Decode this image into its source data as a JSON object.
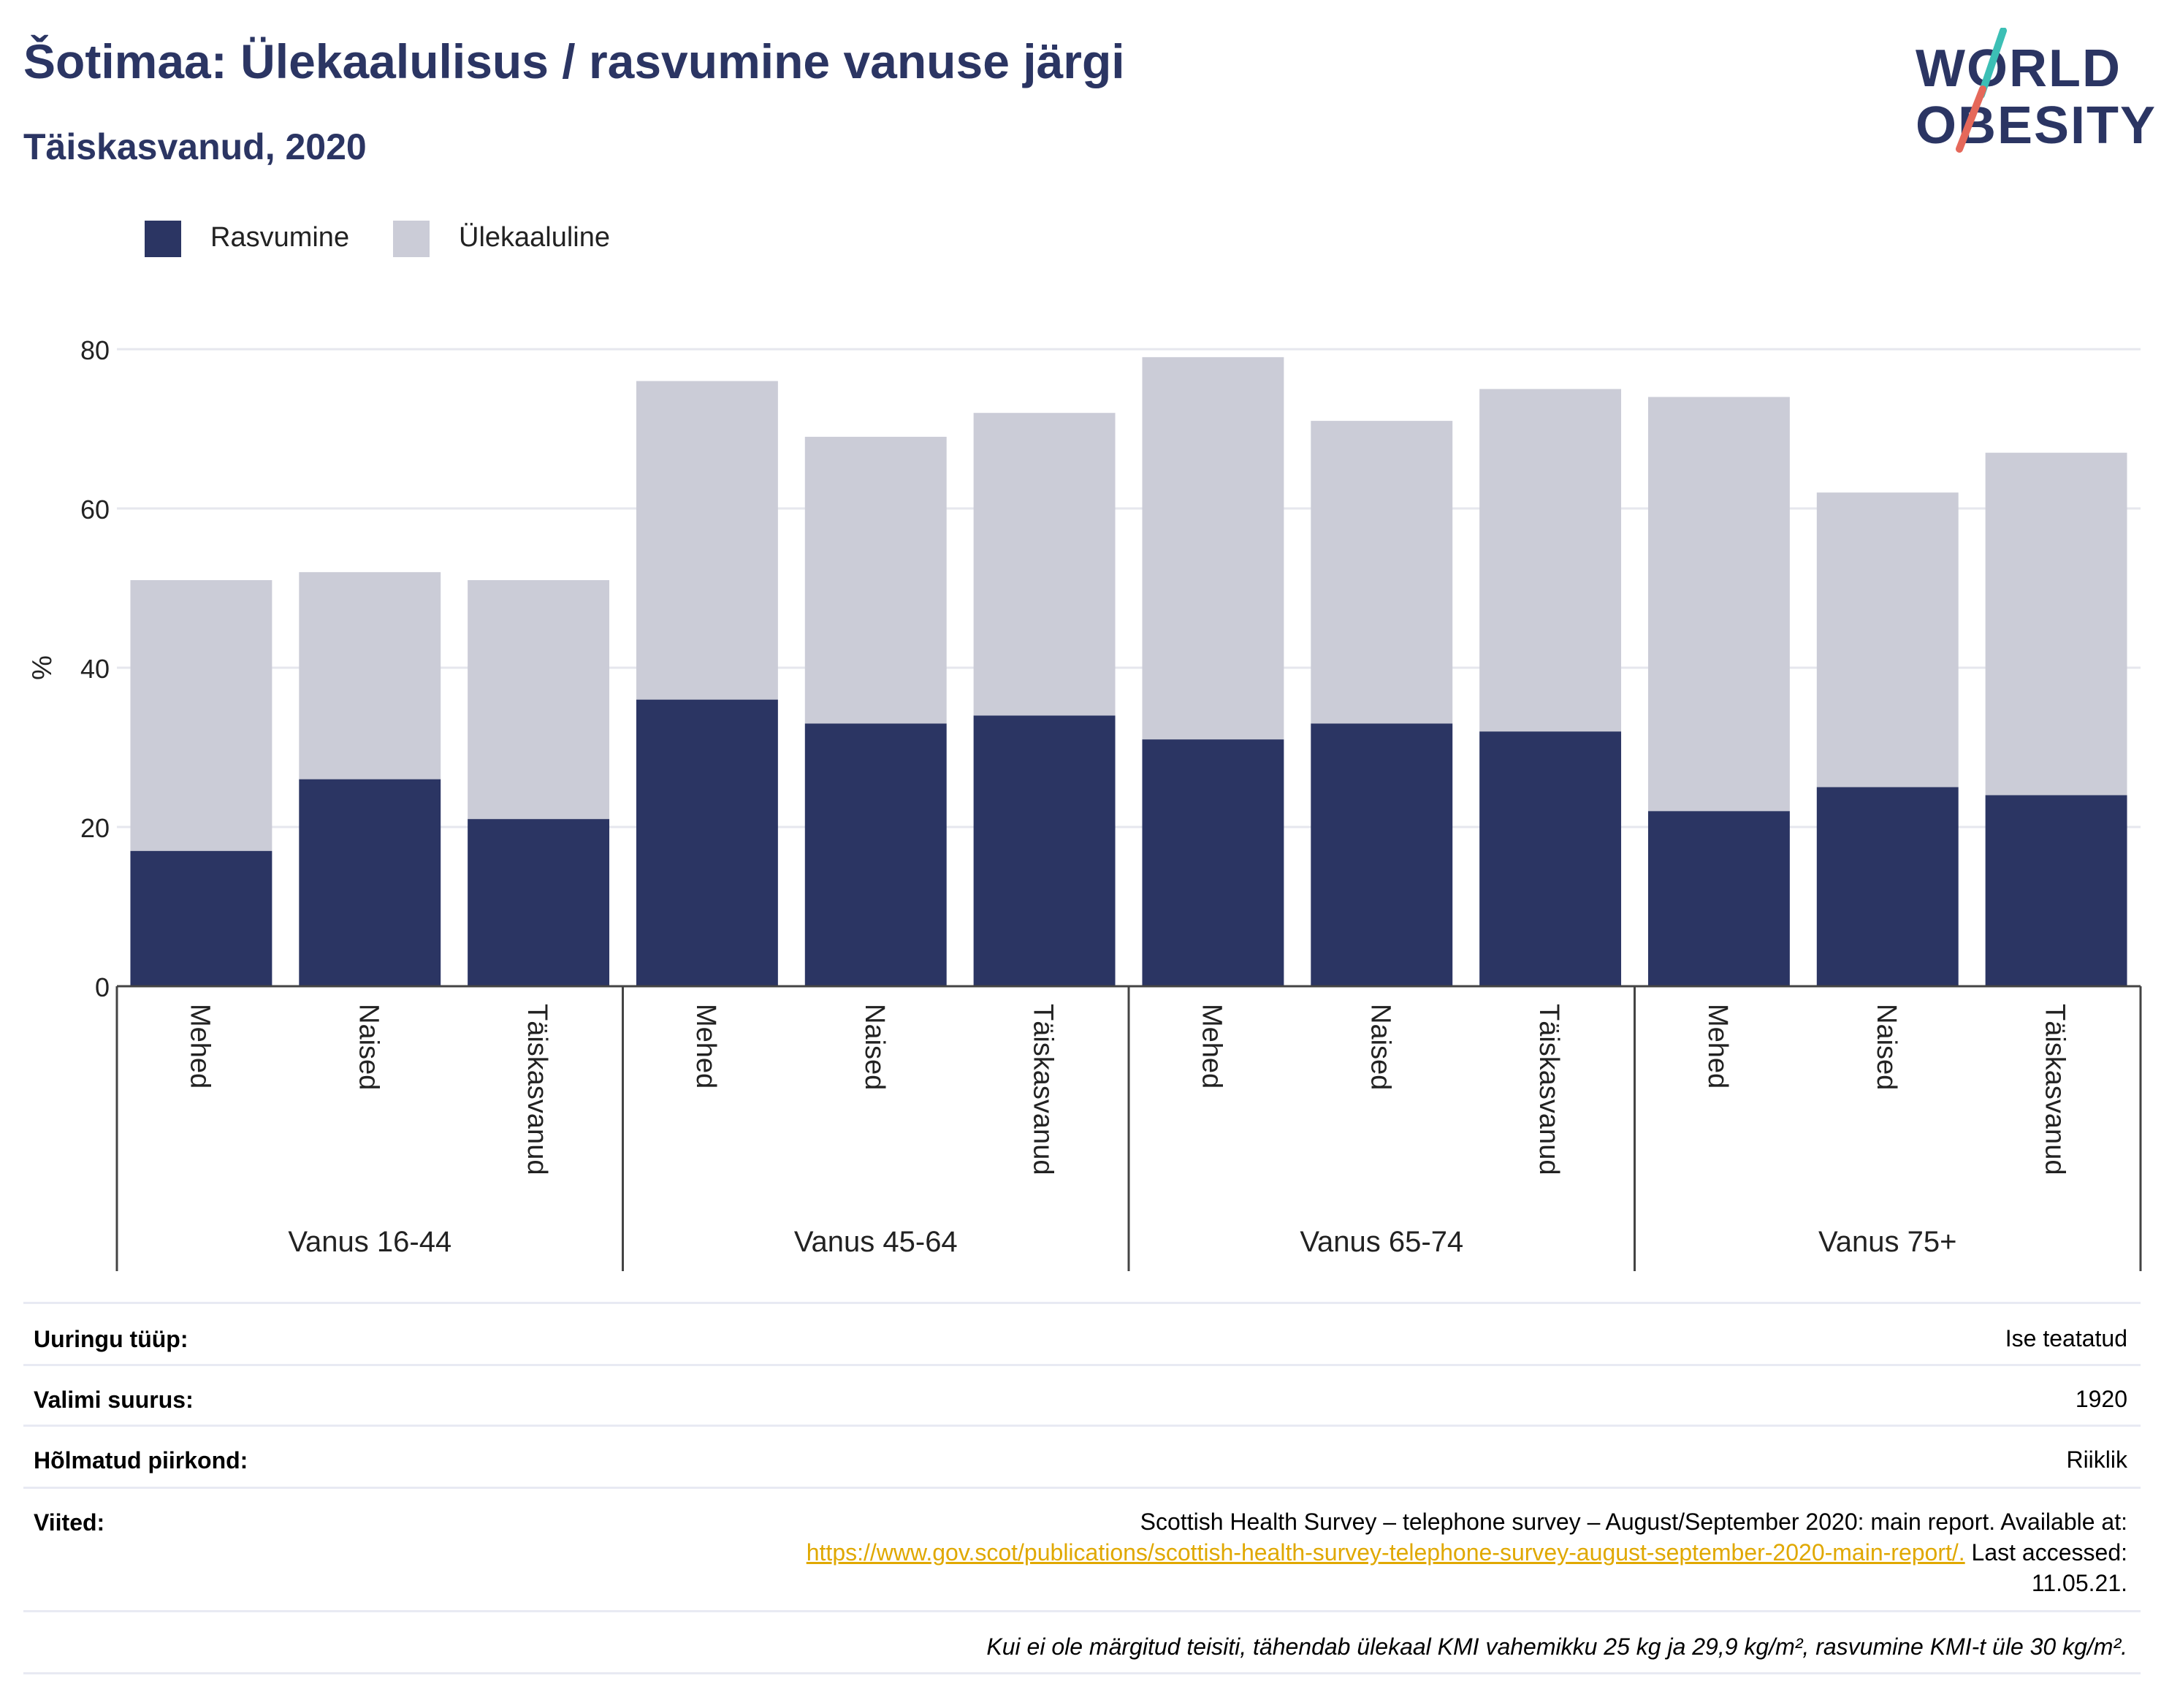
{
  "header": {
    "title": "Šotimaa: Ülekaalulisus / rasvumine vanuse järgi",
    "subtitle": "Täiskasvanud, 2020"
  },
  "logo": {
    "line1": "WORLD",
    "line2": "OBESITY",
    "colors": {
      "text": "#2b3563",
      "slash_top": "#3cbfb5",
      "slash_bottom": "#e5685a"
    }
  },
  "legend": [
    {
      "label": "Rasvumine",
      "color": "#2b3563"
    },
    {
      "label": "Ülekaaluline",
      "color": "#cbccd7"
    }
  ],
  "chart_data": {
    "type": "bar",
    "stacked": true,
    "ylabel": "%",
    "ylim": [
      0,
      88
    ],
    "yticks": [
      0,
      20,
      40,
      60,
      80
    ],
    "grid": true,
    "legend_position": "top-left",
    "groups": [
      {
        "label": "Vanus 16-44",
        "categories": [
          "Mehed",
          "Naised",
          "Täiskasvanud"
        ]
      },
      {
        "label": "Vanus 45-64",
        "categories": [
          "Mehed",
          "Naised",
          "Täiskasvanud"
        ]
      },
      {
        "label": "Vanus 65-74",
        "categories": [
          "Mehed",
          "Naised",
          "Täiskasvanud"
        ]
      },
      {
        "label": "Vanus 75+",
        "categories": [
          "Mehed",
          "Naised",
          "Täiskasvanud"
        ]
      }
    ],
    "series": [
      {
        "name": "Rasvumine",
        "color": "#2b3563",
        "values": [
          17,
          26,
          21,
          36,
          33,
          34,
          31,
          33,
          32,
          22,
          25,
          24
        ]
      },
      {
        "name": "Ülekaaluline",
        "color": "#cbccd7",
        "values": [
          34,
          26,
          30,
          40,
          36,
          38,
          48,
          38,
          43,
          52,
          37,
          43
        ]
      }
    ]
  },
  "info_table": {
    "survey_type": {
      "label": "Uuringu tüüp:",
      "value": "Ise teatatud"
    },
    "sample_size": {
      "label": "Valimi suurus:",
      "value": "1920"
    },
    "region": {
      "label": "Hõlmatud piirkond:",
      "value": "Riiklik"
    },
    "references": {
      "label": "Viited:",
      "text1": "Scottish Health Survey – telephone survey – August/September 2020: main report. Available at:",
      "link": "https://www.gov.scot/publications/scottish-health-survey-telephone-survey-august-september-2020-main-report/.",
      "text2": " Last accessed:",
      "text3": "11.05.21."
    },
    "note": "Kui ei ole märgitud teisiti, tähendab ülekaal KMI vahemikku 25 kg ja 29,9 kg/m², rasvumine KMI-t üle 30 kg/m²."
  }
}
